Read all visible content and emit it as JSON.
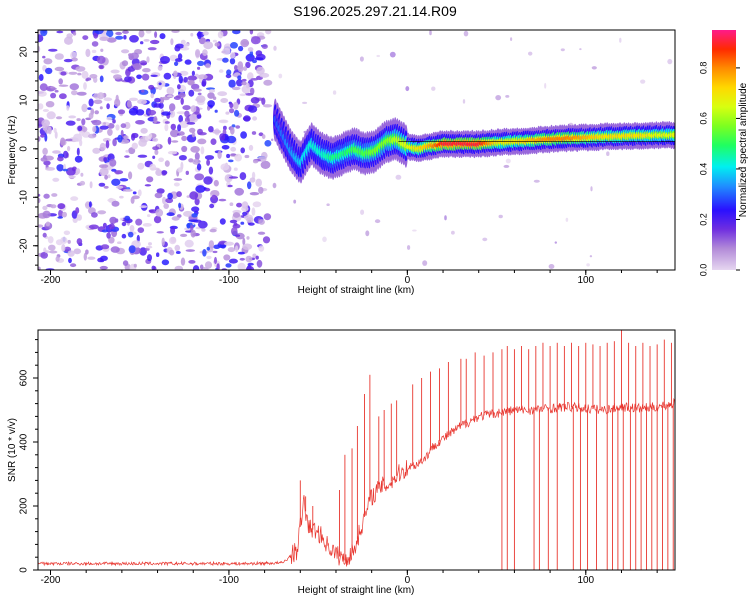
{
  "title": "S196.2025.297.21.14.R09",
  "chart_data": [
    {
      "type": "heatmap",
      "xlabel": "Height of straight line (km)",
      "ylabel": "Frequency (Hz)",
      "xlim": [
        -207,
        150
      ],
      "ylim": [
        -25,
        24.5
      ],
      "xticks": [
        -200,
        -100,
        0,
        100
      ],
      "xtick_labels": [
        "-200",
        "-100",
        "0",
        "100"
      ],
      "yticks": [
        -20,
        -10,
        0,
        10,
        20
      ],
      "ytick_labels": [
        "-20",
        "-10",
        "0",
        "10",
        "20"
      ],
      "noise_region_x": [
        -207,
        -78
      ],
      "ridge": {
        "x": [
          -74,
          -66,
          -60,
          -54,
          -48,
          -42,
          -36,
          -30,
          -24,
          -18,
          -12,
          -6,
          0,
          6,
          12,
          20,
          30,
          40,
          50,
          60,
          70,
          80,
          90,
          100,
          110,
          120,
          130,
          140,
          150
        ],
        "y": [
          6,
          0,
          -3,
          1,
          -1,
          -2,
          -1,
          0,
          -1,
          -0.5,
          1.5,
          2,
          0.5,
          0,
          0.5,
          1,
          1,
          1,
          1.3,
          1.5,
          1.7,
          2,
          2.2,
          2.3,
          2.5,
          2.6,
          2.7,
          2.8,
          2.8
        ],
        "peak_amplitude": [
          0.3,
          0.35,
          0.4,
          0.45,
          0.45,
          0.5,
          0.5,
          0.55,
          0.55,
          0.6,
          0.6,
          0.65,
          0.7,
          0.75,
          0.8,
          0.95,
          0.95,
          0.95,
          0.75,
          0.75,
          0.8,
          0.85,
          0.85,
          0.8,
          0.75,
          0.75,
          0.75,
          0.7,
          0.7
        ]
      },
      "colorbar": {
        "label": "Normalized spectral amplitude",
        "range": [
          0,
          0.95
        ],
        "ticks": [
          0.0,
          0.2,
          0.4,
          0.6,
          0.8
        ],
        "tick_labels": [
          "0.0",
          "0.2",
          "0.4",
          "0.6",
          "0.8"
        ]
      }
    },
    {
      "type": "line",
      "xlabel": "Height of straight line (km)",
      "ylabel": "SNR (10 * v/v)",
      "xlim": [
        -207,
        150
      ],
      "ylim": [
        0,
        750
      ],
      "xticks": [
        -200,
        -100,
        0,
        100
      ],
      "xtick_labels": [
        "-200",
        "-100",
        "0",
        "100"
      ],
      "yticks": [
        0,
        200,
        400,
        600
      ],
      "ytick_labels": [
        "0",
        "200",
        "400",
        "600"
      ],
      "series": [
        {
          "name": "SNR",
          "color": "#e8362f",
          "x": [
            -207,
            -180,
            -150,
            -120,
            -90,
            -70,
            -62,
            -58,
            -55,
            -50,
            -45,
            -40,
            -35,
            -30,
            -25,
            -20,
            -15,
            -10,
            -5,
            0,
            5,
            10,
            15,
            20,
            30,
            40,
            50,
            60,
            70,
            80,
            90,
            100,
            110,
            120,
            130,
            140,
            150
          ],
          "y": [
            20,
            20,
            20,
            20,
            20,
            22,
            60,
            210,
            130,
            120,
            80,
            50,
            30,
            60,
            150,
            230,
            260,
            270,
            300,
            320,
            330,
            350,
            390,
            410,
            450,
            480,
            490,
            500,
            500,
            505,
            510,
            505,
            500,
            510,
            505,
            510,
            520
          ],
          "spikes_x": [
            -60,
            -57,
            -53,
            -38,
            -35,
            -31,
            -28,
            -24,
            -21,
            -16,
            -13,
            -9,
            -6,
            3,
            8,
            13,
            18,
            23,
            30,
            33,
            38,
            43,
            48,
            53,
            56,
            60,
            64,
            68,
            72,
            76,
            80,
            84,
            88,
            92,
            96,
            100,
            104,
            108,
            112,
            116,
            120,
            124,
            128,
            132,
            136,
            140,
            144,
            148
          ],
          "spikes_y": [
            280,
            230,
            200,
            250,
            360,
            380,
            450,
            550,
            610,
            480,
            500,
            520,
            530,
            580,
            600,
            620,
            630,
            650,
            660,
            660,
            680,
            670,
            680,
            690,
            700,
            690,
            700,
            690,
            700,
            710,
            700,
            710,
            700,
            710,
            700,
            710,
            705,
            700,
            710,
            715,
            750,
            710,
            700,
            710,
            700,
            705,
            720,
            710
          ],
          "dropouts_x": [
            53,
            56,
            60,
            71,
            74,
            79,
            84,
            93,
            97,
            101,
            106,
            112,
            115,
            118,
            121,
            125,
            128,
            131,
            134,
            137,
            140,
            143,
            146,
            149
          ]
        }
      ]
    }
  ]
}
